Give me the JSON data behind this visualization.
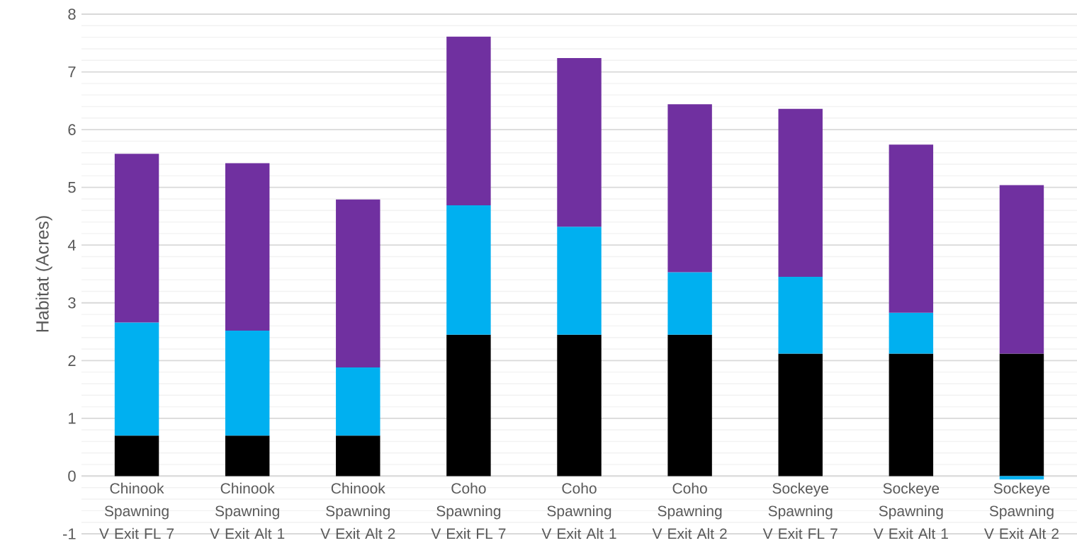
{
  "chart_data": {
    "type": "bar",
    "stacked": true,
    "ylabel": "Habitat (Acres)",
    "categories": [
      "Chinook Spawning V Exit FL 7",
      "Chinook Spawning V Exit Alt 1",
      "Chinook Spawning V Exit Alt 2",
      "Coho Spawning V Exit FL 7",
      "Coho Spawning V Exit Alt 1",
      "Coho Spawning V Exit Alt 2",
      "Sockeye Spawning V Exit FL 7",
      "Sockeye Spawning V Exit Alt 1",
      "Sockeye Spawning V Exit Alt 2"
    ],
    "series": [
      {
        "color": "#000000",
        "values": [
          0.7,
          0.7,
          0.7,
          2.45,
          2.45,
          2.45,
          2.12,
          2.12,
          2.12
        ]
      },
      {
        "color": "#00b0f0",
        "values": [
          1.96,
          1.82,
          1.18,
          2.24,
          1.87,
          1.08,
          1.33,
          0.71,
          -0.06
        ]
      },
      {
        "color": "#7030a0",
        "values": [
          2.92,
          2.9,
          2.91,
          2.92,
          2.92,
          2.91,
          2.91,
          2.91,
          2.92
        ]
      }
    ],
    "ylim": [
      -1,
      8
    ],
    "yticks": [
      -1,
      0,
      1,
      2,
      3,
      4,
      5,
      6,
      7,
      8
    ],
    "grid": "y"
  }
}
